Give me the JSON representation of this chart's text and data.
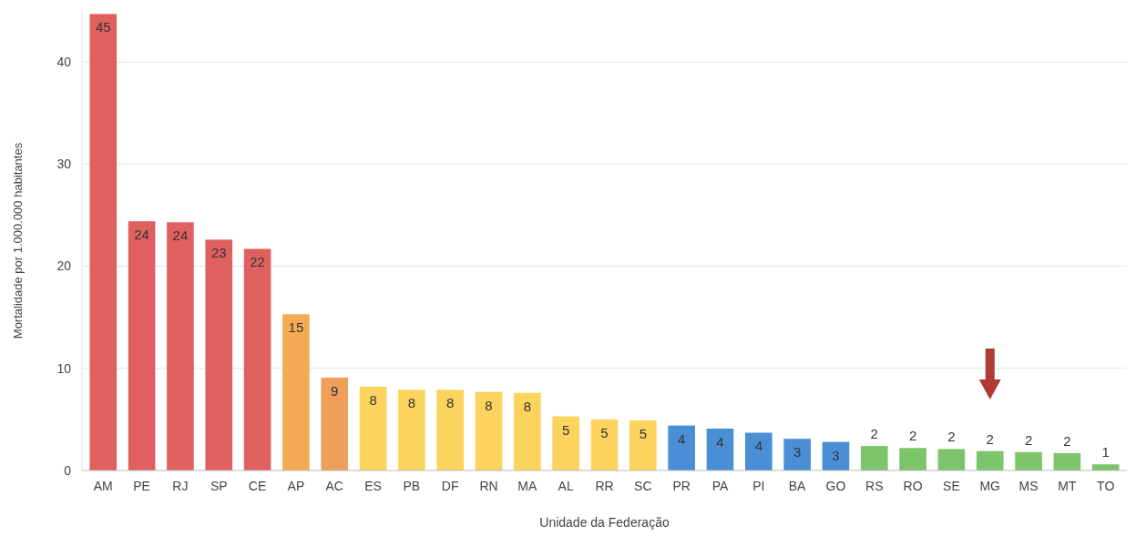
{
  "chart_data": {
    "type": "bar",
    "xlabel": "Unidade da Federação",
    "ylabel": "Mortalidade por 1.000.000 habitantes",
    "categories": [
      "AM",
      "PE",
      "RJ",
      "SP",
      "CE",
      "AP",
      "AC",
      "ES",
      "PB",
      "DF",
      "RN",
      "MA",
      "AL",
      "RR",
      "SC",
      "PR",
      "PA",
      "PI",
      "BA",
      "GO",
      "RS",
      "RO",
      "SE",
      "MG",
      "MS",
      "MT",
      "TO"
    ],
    "values": [
      44.7,
      24.4,
      24.3,
      22.6,
      21.7,
      15.3,
      9.1,
      8.2,
      7.9,
      7.9,
      7.7,
      7.6,
      5.3,
      5.0,
      4.9,
      4.4,
      4.1,
      3.7,
      3.1,
      2.8,
      2.4,
      2.2,
      2.1,
      1.9,
      1.8,
      1.7,
      0.6
    ],
    "value_labels": [
      "45",
      "24",
      "24",
      "23",
      "22",
      "15",
      "9",
      "8",
      "8",
      "8",
      "8",
      "8",
      "5",
      "5",
      "5",
      "4",
      "4",
      "4",
      "3",
      "3",
      "2",
      "2",
      "2",
      "2",
      "2",
      "2",
      "1"
    ],
    "colors": [
      "#e06060",
      "#e06060",
      "#e06060",
      "#e06060",
      "#e06060",
      "#f5aa55",
      "#ee9f5c",
      "#fcd35c",
      "#fcd35c",
      "#fcd35c",
      "#fcd35c",
      "#fcd35c",
      "#fcd35c",
      "#fcd35c",
      "#fcd35c",
      "#4a8fd6",
      "#4a8fd6",
      "#4a8fd6",
      "#4a8fd6",
      "#4a8fd6",
      "#7cc46a",
      "#7cc46a",
      "#7cc46a",
      "#7cc46a",
      "#7cc46a",
      "#7cc46a",
      "#7cc46a"
    ],
    "ylim": [
      0,
      45
    ],
    "yticks": [
      0,
      10,
      20,
      30,
      40
    ],
    "grid": "y"
  }
}
